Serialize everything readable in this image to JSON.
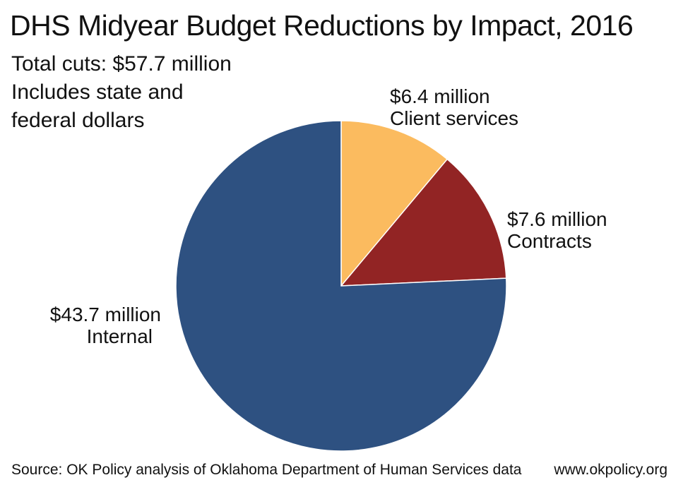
{
  "chart_data": {
    "type": "pie",
    "title": "DHS Midyear Budget Reductions by Impact, 2016",
    "subtitle_lines": [
      "Total cuts: $57.7 million",
      "Includes state and",
      "federal dollars"
    ],
    "unit": "million",
    "slices": [
      {
        "label": "Client services",
        "value_text": "$6.4 million",
        "value": 6.4,
        "color": "#FBBB5F"
      },
      {
        "label": "Contracts",
        "value_text": "$7.6 million",
        "value": 7.6,
        "color": "#922424"
      },
      {
        "label": "Internal",
        "value_text": "$43.7 million",
        "value": 43.7,
        "color": "#2E5181"
      }
    ],
    "source": "Source: OK Policy analysis of Oklahoma Department of Human Services data",
    "website": "www.okpolicy.org"
  }
}
